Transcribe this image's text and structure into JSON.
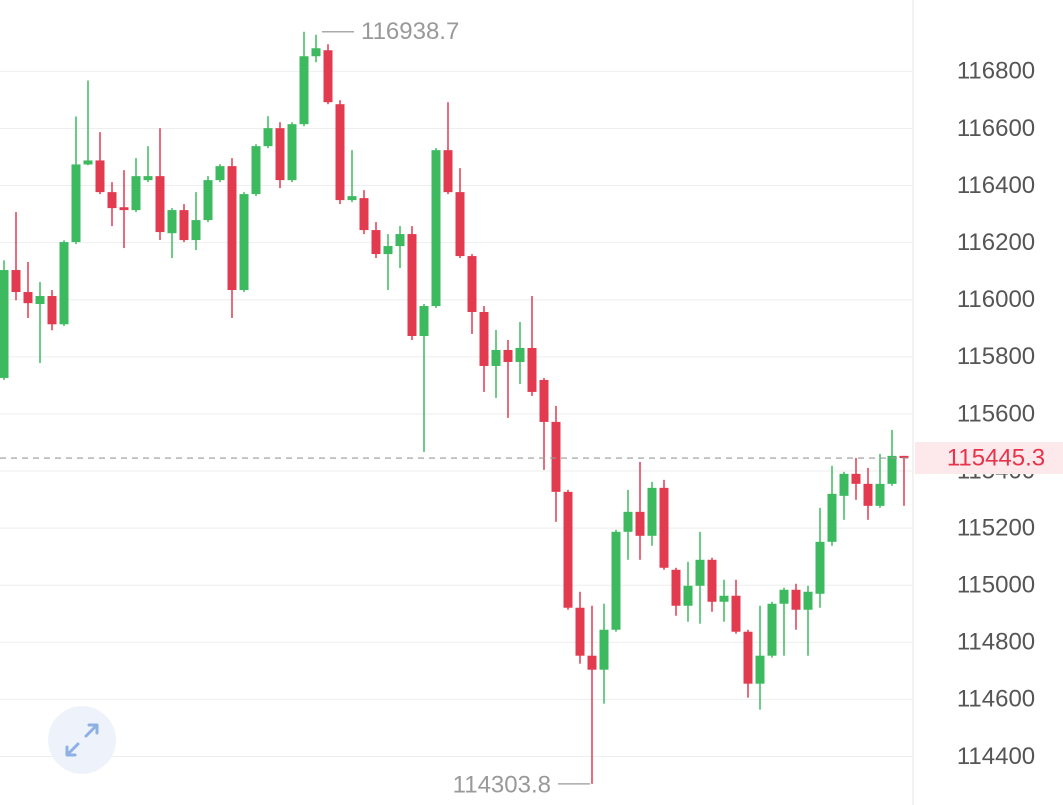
{
  "chart_data": {
    "type": "candlestick",
    "up_color": "#3dba5f",
    "down_color": "#e23b50",
    "ylim": [
      114230,
      117050
    ],
    "yticks": [
      114400,
      114600,
      114800,
      115000,
      115200,
      115400,
      115600,
      115800,
      116000,
      116200,
      116400,
      116600,
      116800
    ],
    "grid": true,
    "open": [
      115726,
      116104,
      116027,
      115985,
      116013,
      115914,
      116202,
      116474,
      116488,
      116377,
      116324,
      116314,
      116419,
      116433,
      116233,
      116314,
      116209,
      116279,
      116419,
      116468,
      116034,
      116370,
      116538,
      116601,
      116419,
      116615,
      116853,
      116874,
      116685,
      116349,
      116356,
      116244,
      116160,
      116188,
      116230,
      115873,
      115978,
      116524,
      116377,
      116153,
      115957,
      115768,
      115824,
      115782,
      115831,
      115719,
      115572,
      115327,
      114921,
      114753,
      114704,
      114844,
      115187,
      115257,
      115173,
      115341,
      115054,
      114928,
      114998,
      115089,
      114942,
      114963,
      114837,
      114655,
      114753,
      114935,
      114984,
      114914,
      114970,
      115152,
      115313,
      115390,
      115355,
      115278,
      115355,
      115453
    ],
    "high": [
      116138,
      116307,
      116132,
      116062,
      116034,
      116208,
      116642,
      116768,
      116587,
      116412,
      116454,
      116496,
      116538,
      116601,
      116321,
      116335,
      116377,
      116433,
      116475,
      116496,
      116377,
      116545,
      116643,
      116622,
      116622,
      116938.7,
      116928,
      116895,
      116699,
      116524,
      116384,
      116272,
      116230,
      116258,
      116258,
      115985,
      116531,
      116692,
      116461,
      116160,
      115978,
      115894,
      115859,
      115922,
      116013,
      115726,
      115628,
      115334,
      114977,
      114928,
      114935,
      115194,
      115334,
      115432,
      115362,
      115369,
      115061,
      115082,
      115187,
      115096,
      115019,
      115019,
      114844,
      114928,
      114942,
      114991,
      115005,
      114998,
      115271,
      115418,
      115397,
      115446,
      115411,
      115460,
      115544,
      115453
    ],
    "low": [
      115719,
      115998,
      115936,
      115778,
      115893,
      115908,
      116195,
      116471,
      116370,
      116258,
      116181,
      116307,
      116412,
      116209,
      116146,
      116202,
      116174,
      116272,
      116412,
      115936,
      116027,
      116363,
      116531,
      116391,
      116412,
      116608,
      116832,
      116685,
      116335,
      116342,
      116230,
      116146,
      116034,
      116111,
      115859,
      115467,
      115971,
      116370,
      116146,
      115880,
      115677,
      115656,
      115586,
      115705,
      115663,
      115404,
      115222,
      114914,
      114725,
      114303.8,
      114585,
      114837,
      115089,
      115089,
      115138,
      115054,
      114893,
      114872,
      114865,
      114907,
      114872,
      114830,
      114606,
      114564,
      114746,
      114753,
      114844,
      114753,
      114921,
      115138,
      115229,
      115299,
      115229,
      115271,
      115348,
      115278
    ],
    "close": [
      116104,
      116027,
      115988,
      116013,
      115914,
      116202,
      116474,
      116488,
      116377,
      116321,
      116314,
      116433,
      116433,
      116237,
      116314,
      116209,
      116279,
      116419,
      116468,
      116034,
      116370,
      116538,
      116601,
      116419,
      116615,
      116853,
      116881,
      116692,
      116349,
      116363,
      116244,
      116160,
      116188,
      116230,
      115873,
      115978,
      116524,
      116377,
      116153,
      115957,
      115768,
      115824,
      115782,
      115831,
      115677,
      115572,
      115327,
      114921,
      114753,
      114704,
      114844,
      115187,
      115257,
      115173,
      115341,
      115061,
      114928,
      114998,
      115089,
      114942,
      114963,
      114837,
      114655,
      114753,
      114935,
      114984,
      114914,
      114977,
      115152,
      115320,
      115390,
      115355,
      115278,
      115355,
      115453,
      115445.3
    ],
    "high_label": 116938.7,
    "low_label": 114303.8,
    "last_price": 115445.3
  }
}
